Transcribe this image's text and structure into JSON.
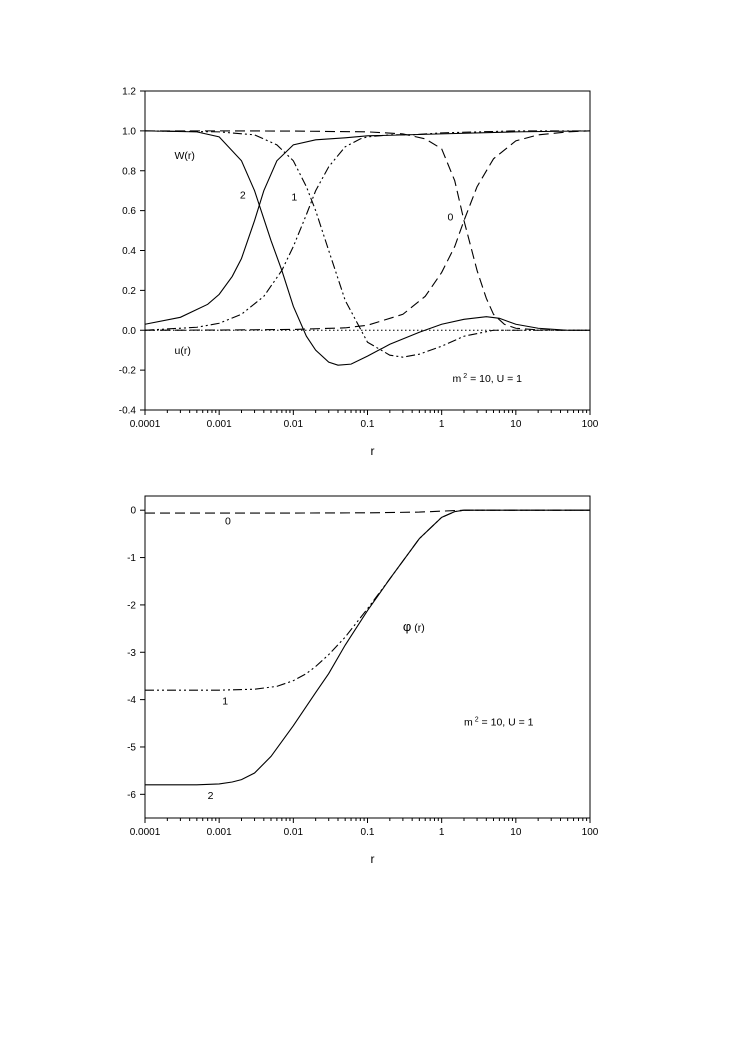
{
  "chart_data": [
    {
      "type": "line",
      "xscale": "log",
      "xlim": [
        0.0001,
        100
      ],
      "ylim": [
        -0.4,
        1.2
      ],
      "xticks": [
        0.0001,
        0.001,
        0.01,
        0.1,
        1,
        10,
        100
      ],
      "xtick_labels": [
        "0.0001",
        "0.001",
        "0.01",
        "0.1",
        "1",
        "10",
        "100"
      ],
      "yticks": [
        -0.4,
        -0.2,
        0.0,
        0.2,
        0.4,
        0.6,
        0.8,
        1.0,
        1.2
      ],
      "ytick_labels": [
        "-0.4",
        "-0.2",
        "0.0",
        "0.2",
        "0.4",
        "0.6",
        "0.8",
        "1.0",
        "1.2"
      ],
      "xlabel": "r",
      "ylabel": "",
      "grid": false,
      "annotations": [
        {
          "text": "W(r)",
          "x": 0.00025,
          "y": 0.86
        },
        {
          "text": "u(r)",
          "x": 0.00025,
          "y": -0.12
        },
        {
          "text": "2",
          "x": 0.0019,
          "y": 0.66
        },
        {
          "text": "1",
          "x": 0.0094,
          "y": 0.65
        },
        {
          "text": "0",
          "x": 1.2,
          "y": 0.55
        }
      ],
      "parameter_label": {
        "text_before": "m",
        "superscript": "2",
        "text_after": " = 10, U = 1",
        "x": 1.4,
        "y": -0.26
      },
      "series": [
        {
          "label": "0",
          "component": "W",
          "style": "dashed",
          "x": [
            0.0001,
            0.001,
            0.01,
            0.1,
            0.3,
            0.6,
            1.0,
            1.5,
            2.0,
            3.0,
            4.0,
            5.0,
            7.0,
            10,
            20,
            50,
            100
          ],
          "y": [
            1.0,
            1.0,
            0.999,
            0.995,
            0.985,
            0.96,
            0.91,
            0.75,
            0.55,
            0.3,
            0.16,
            0.08,
            0.03,
            0.01,
            0.002,
            0.0,
            0.0
          ]
        },
        {
          "label": "1",
          "component": "W",
          "style": "dash-dot-dot",
          "x": [
            0.0001,
            0.001,
            0.003,
            0.006,
            0.01,
            0.015,
            0.02,
            0.03,
            0.05,
            0.1,
            0.2,
            0.3,
            0.5,
            1.0,
            2.0,
            5.0,
            10,
            100
          ],
          "y": [
            1.0,
            0.995,
            0.98,
            0.93,
            0.85,
            0.72,
            0.6,
            0.4,
            0.15,
            -0.06,
            -0.125,
            -0.135,
            -0.12,
            -0.08,
            -0.03,
            0.0,
            0.0,
            0.0
          ]
        },
        {
          "label": "2",
          "component": "W",
          "style": "solid",
          "x": [
            0.0001,
            0.0005,
            0.001,
            0.002,
            0.003,
            0.005,
            0.007,
            0.01,
            0.015,
            0.02,
            0.03,
            0.04,
            0.06,
            0.1,
            0.2,
            0.5,
            1.0,
            2.0,
            4.0,
            6.0,
            10,
            20,
            50,
            100
          ],
          "y": [
            1.0,
            0.995,
            0.97,
            0.85,
            0.7,
            0.45,
            0.3,
            0.12,
            -0.03,
            -0.1,
            -0.16,
            -0.175,
            -0.17,
            -0.13,
            -0.07,
            -0.01,
            0.03,
            0.055,
            0.068,
            0.06,
            0.03,
            0.01,
            0.0,
            0.0
          ]
        },
        {
          "label": "0",
          "component": "u",
          "style": "dashed",
          "x": [
            0.0001,
            0.001,
            0.01,
            0.05,
            0.1,
            0.3,
            0.6,
            1.0,
            1.5,
            2.0,
            3.0,
            5.0,
            10,
            20,
            50,
            100
          ],
          "y": [
            0.0,
            0.001,
            0.004,
            0.012,
            0.025,
            0.08,
            0.17,
            0.29,
            0.42,
            0.55,
            0.72,
            0.86,
            0.95,
            0.98,
            0.995,
            1.0
          ]
        },
        {
          "label": "1",
          "component": "u",
          "style": "dash-dot-dot",
          "x": [
            0.0001,
            0.0005,
            0.001,
            0.002,
            0.004,
            0.007,
            0.01,
            0.015,
            0.02,
            0.03,
            0.05,
            0.08,
            0.1,
            0.2,
            0.4,
            1.0,
            10,
            100
          ],
          "y": [
            0.0,
            0.015,
            0.035,
            0.08,
            0.17,
            0.3,
            0.42,
            0.58,
            0.7,
            0.82,
            0.92,
            0.96,
            0.97,
            0.98,
            0.98,
            0.99,
            1.0,
            1.0
          ]
        },
        {
          "label": "2",
          "component": "u",
          "style": "solid",
          "x": [
            0.0001,
            0.0003,
            0.0007,
            0.001,
            0.0015,
            0.002,
            0.003,
            0.004,
            0.006,
            0.01,
            0.02,
            0.05,
            0.1,
            1.0,
            10,
            100
          ],
          "y": [
            0.03,
            0.065,
            0.13,
            0.18,
            0.27,
            0.36,
            0.55,
            0.7,
            0.85,
            0.93,
            0.955,
            0.965,
            0.975,
            0.985,
            0.995,
            1.0
          ]
        },
        {
          "label": "",
          "component": "zero",
          "style": "dotted",
          "x": [
            0.0001,
            100
          ],
          "y": [
            0.0,
            0.0
          ]
        }
      ]
    },
    {
      "type": "line",
      "xscale": "log",
      "xlim": [
        0.0001,
        100
      ],
      "ylim": [
        -6.5,
        0.3
      ],
      "xticks": [
        0.0001,
        0.001,
        0.01,
        0.1,
        1,
        10,
        100
      ],
      "xtick_labels": [
        "0.0001",
        "0.001",
        "0.01",
        "0.1",
        "1",
        "10",
        "100"
      ],
      "yticks": [
        -6,
        -5,
        -4,
        -3,
        -2,
        -1,
        0
      ],
      "ytick_labels": [
        "-6",
        "-5",
        "-4",
        "-3",
        "-2",
        "-1",
        "0"
      ],
      "xlabel": "r",
      "ylabel": "",
      "grid": false,
      "annotations": [
        {
          "text": "0",
          "x": 0.0012,
          "y": -0.3
        },
        {
          "text": "1",
          "x": 0.0011,
          "y": -4.1
        },
        {
          "text": "2",
          "x": 0.0007,
          "y": -6.1
        }
      ],
      "phi_label": {
        "symbol": "φ",
        "text": " (r)",
        "x": 0.3,
        "y": -2.55
      },
      "parameter_label": {
        "text_before": "m",
        "superscript": "2",
        "text_after": " = 10, U = 1",
        "x": 2.0,
        "y": -4.55
      },
      "series": [
        {
          "label": "0",
          "style": "dashed",
          "x": [
            0.0001,
            0.01,
            0.1,
            0.5,
            1.0,
            2.0,
            10,
            100
          ],
          "y": [
            -0.06,
            -0.06,
            -0.055,
            -0.04,
            -0.02,
            0.0,
            0.0,
            0.0
          ]
        },
        {
          "label": "1",
          "style": "dash-dot-dot",
          "x": [
            0.0001,
            0.001,
            0.003,
            0.006,
            0.01,
            0.015,
            0.02,
            0.03,
            0.05,
            0.1,
            0.2,
            0.5,
            1.0,
            1.5,
            2.0,
            10,
            100
          ],
          "y": [
            -3.8,
            -3.8,
            -3.78,
            -3.72,
            -3.6,
            -3.45,
            -3.3,
            -3.05,
            -2.68,
            -2.08,
            -1.45,
            -0.6,
            -0.15,
            -0.03,
            0.0,
            0.0,
            0.0
          ]
        },
        {
          "label": "2",
          "style": "solid",
          "x": [
            0.0001,
            0.0005,
            0.001,
            0.0015,
            0.002,
            0.003,
            0.005,
            0.01,
            0.02,
            0.03,
            0.05,
            0.1,
            0.2,
            0.5,
            1.0,
            1.5,
            2.0,
            10,
            100
          ],
          "y": [
            -5.8,
            -5.8,
            -5.78,
            -5.74,
            -5.69,
            -5.55,
            -5.2,
            -4.55,
            -3.85,
            -3.45,
            -2.85,
            -2.12,
            -1.45,
            -0.6,
            -0.15,
            -0.03,
            0.0,
            0.0,
            0.0
          ]
        }
      ]
    }
  ]
}
